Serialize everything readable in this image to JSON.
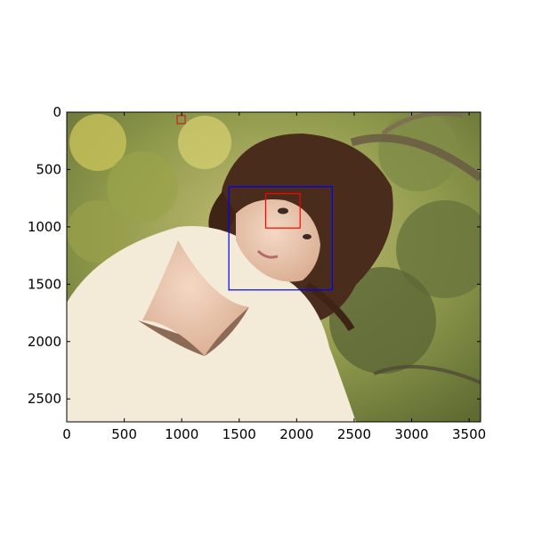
{
  "figure": {
    "x_range": [
      0,
      3600
    ],
    "y_range": [
      2700,
      0
    ],
    "x_ticks": [
      0,
      500,
      1000,
      1500,
      2000,
      2500,
      3000,
      3500
    ],
    "y_ticks": [
      0,
      500,
      1000,
      1500,
      2000,
      2500
    ],
    "x_tick_labels": [
      "0",
      "500",
      "1000",
      "1500",
      "2000",
      "2500",
      "3000",
      "3500"
    ],
    "y_tick_labels": [
      "0",
      "500",
      "1000",
      "1500",
      "2000",
      "2500"
    ],
    "image_description_icon": "photo-of-woman-in-cream-sweater-among-trees",
    "boxes": [
      {
        "name": "face-box",
        "color": "#0000ff",
        "x": [
          1410,
          2310
        ],
        "y": [
          650,
          1550
        ]
      },
      {
        "name": "eye-box",
        "color": "#ff0000",
        "x": [
          1730,
          2030
        ],
        "y": [
          710,
          1010
        ]
      },
      {
        "name": "small-box-top",
        "color": "#cc2222",
        "x": [
          960,
          1030
        ],
        "y": [
          30,
          100
        ]
      }
    ]
  }
}
